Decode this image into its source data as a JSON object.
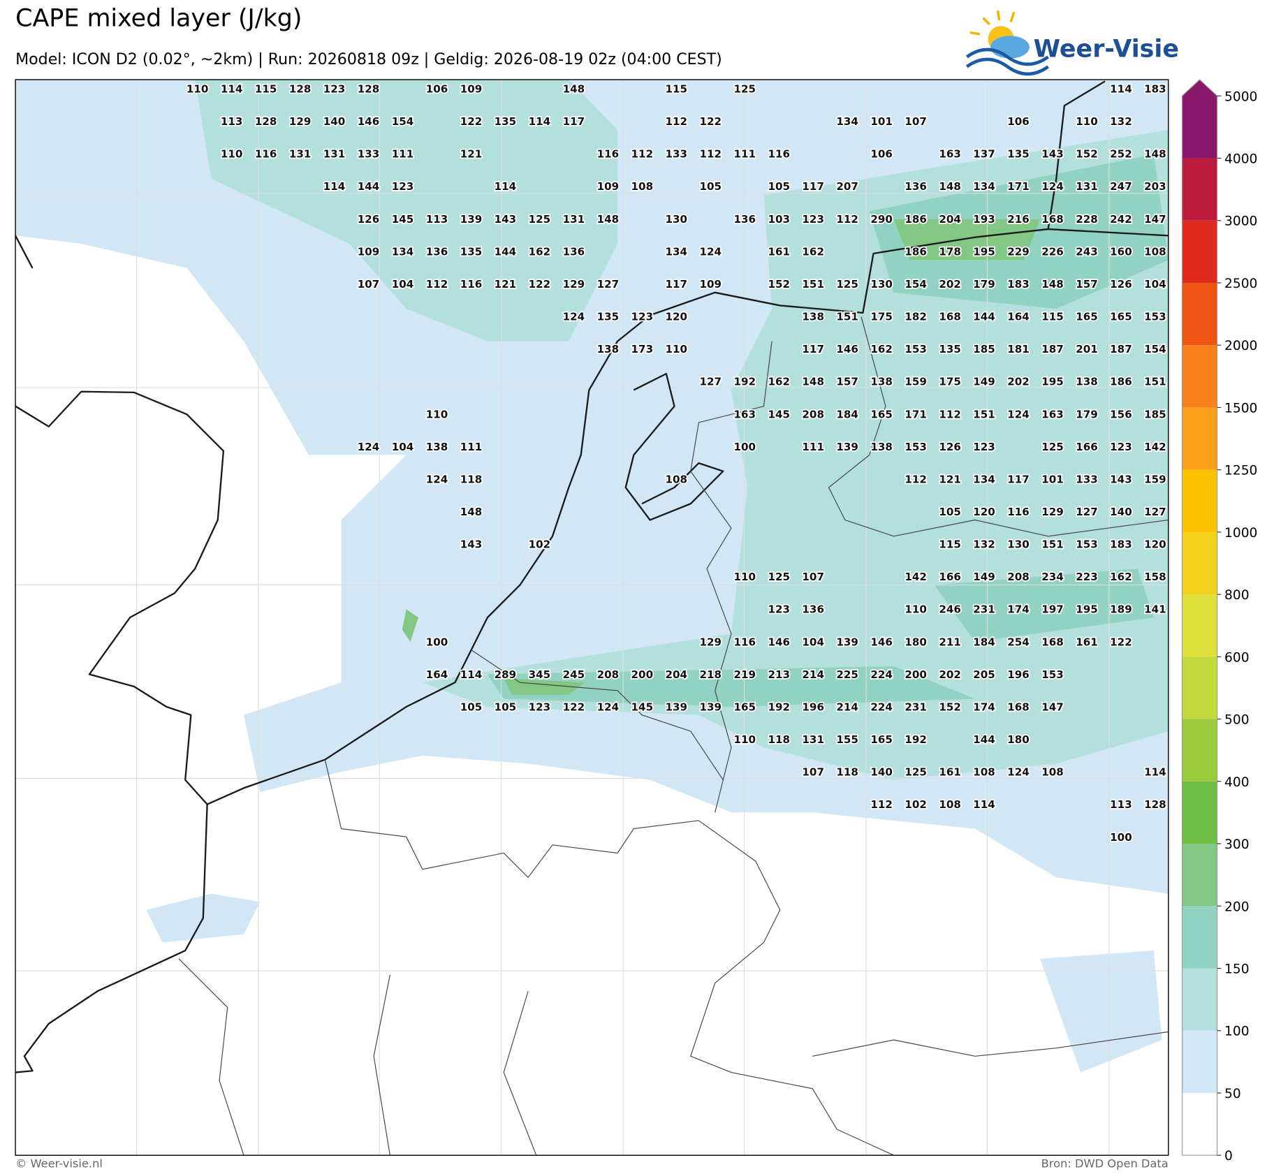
{
  "header": {
    "title": "CAPE mixed layer (J/kg)",
    "subtitle": "Model: ICON D2 (0.02°, ~2km)  |  Run: 20260818 09z  |  Geldig: 2026-08-19 02z (04:00 CEST)",
    "logo": "Weer-Visie"
  },
  "map": {
    "grid_values": [
      [
        110,
        114,
        115,
        128,
        123,
        128,
        null,
        106,
        109,
        null,
        null,
        148,
        null,
        null,
        115,
        null,
        125,
        null,
        null,
        null,
        null,
        null,
        null,
        null,
        null,
        null,
        null,
        114,
        183
      ],
      [
        null,
        113,
        128,
        129,
        140,
        146,
        154,
        null,
        122,
        135,
        114,
        117,
        null,
        null,
        112,
        122,
        null,
        null,
        null,
        134,
        101,
        107,
        null,
        null,
        106,
        null,
        110,
        132,
        null
      ],
      [
        null,
        110,
        116,
        131,
        131,
        133,
        111,
        null,
        121,
        null,
        null,
        null,
        116,
        112,
        133,
        112,
        111,
        116,
        null,
        null,
        106,
        null,
        163,
        137,
        135,
        143,
        152,
        252,
        148
      ],
      [
        null,
        null,
        null,
        null,
        114,
        144,
        123,
        null,
        null,
        114,
        null,
        null,
        109,
        108,
        null,
        105,
        null,
        105,
        117,
        207,
        null,
        136,
        148,
        134,
        171,
        124,
        131,
        247,
        203
      ],
      [
        null,
        null,
        null,
        null,
        null,
        126,
        145,
        113,
        139,
        143,
        125,
        131,
        148,
        null,
        130,
        null,
        136,
        103,
        123,
        112,
        290,
        186,
        204,
        193,
        216,
        168,
        228,
        242,
        147
      ],
      [
        null,
        null,
        null,
        null,
        null,
        109,
        134,
        136,
        135,
        144,
        162,
        136,
        null,
        null,
        134,
        124,
        null,
        161,
        162,
        null,
        null,
        186,
        178,
        195,
        229,
        226,
        243,
        160,
        108
      ],
      [
        null,
        null,
        null,
        null,
        null,
        107,
        104,
        112,
        116,
        121,
        122,
        129,
        127,
        null,
        117,
        109,
        null,
        152,
        151,
        125,
        130,
        154,
        202,
        179,
        183,
        148,
        157,
        126,
        104
      ],
      [
        null,
        null,
        null,
        null,
        null,
        null,
        null,
        null,
        null,
        null,
        null,
        124,
        135,
        123,
        120,
        null,
        null,
        null,
        138,
        151,
        175,
        182,
        168,
        144,
        164,
        115,
        165,
        165,
        153
      ],
      [
        null,
        null,
        null,
        null,
        null,
        null,
        null,
        null,
        null,
        null,
        null,
        null,
        138,
        173,
        110,
        null,
        null,
        null,
        117,
        146,
        162,
        153,
        135,
        185,
        181,
        187,
        201,
        187,
        154
      ],
      [
        null,
        null,
        null,
        null,
        null,
        null,
        null,
        null,
        null,
        null,
        null,
        null,
        null,
        null,
        null,
        127,
        192,
        162,
        148,
        157,
        138,
        159,
        175,
        149,
        202,
        195,
        138,
        186,
        151
      ],
      [
        null,
        null,
        null,
        null,
        null,
        null,
        null,
        110,
        null,
        null,
        null,
        null,
        null,
        null,
        null,
        null,
        163,
        145,
        208,
        184,
        165,
        171,
        112,
        151,
        124,
        163,
        179,
        156,
        185
      ],
      [
        null,
        null,
        null,
        null,
        null,
        124,
        104,
        138,
        111,
        null,
        null,
        null,
        null,
        null,
        null,
        null,
        100,
        null,
        111,
        139,
        138,
        153,
        126,
        123,
        null,
        125,
        166,
        123,
        142
      ],
      [
        null,
        null,
        null,
        null,
        null,
        null,
        null,
        124,
        118,
        null,
        null,
        null,
        null,
        null,
        108,
        null,
        null,
        null,
        null,
        null,
        null,
        112,
        121,
        134,
        117,
        101,
        133,
        143,
        159
      ],
      [
        null,
        null,
        null,
        null,
        null,
        null,
        null,
        null,
        148,
        null,
        null,
        null,
        null,
        null,
        null,
        null,
        null,
        null,
        null,
        null,
        null,
        null,
        105,
        120,
        116,
        129,
        127,
        140,
        127
      ],
      [
        null,
        null,
        null,
        null,
        null,
        null,
        null,
        null,
        143,
        null,
        102,
        null,
        null,
        null,
        null,
        null,
        null,
        null,
        null,
        null,
        null,
        null,
        115,
        132,
        130,
        151,
        153,
        183,
        120
      ],
      [
        null,
        null,
        null,
        null,
        null,
        null,
        null,
        null,
        null,
        null,
        null,
        null,
        null,
        null,
        null,
        null,
        110,
        125,
        107,
        null,
        null,
        142,
        166,
        149,
        208,
        234,
        223,
        162,
        158
      ],
      [
        null,
        null,
        null,
        null,
        null,
        null,
        null,
        null,
        null,
        null,
        null,
        null,
        null,
        null,
        null,
        null,
        null,
        123,
        136,
        null,
        null,
        110,
        246,
        231,
        174,
        197,
        195,
        189,
        141
      ],
      [
        null,
        null,
        null,
        null,
        null,
        null,
        null,
        100,
        null,
        null,
        null,
        null,
        null,
        null,
        null,
        129,
        116,
        146,
        104,
        139,
        146,
        180,
        211,
        184,
        254,
        168,
        161,
        122,
        null
      ],
      [
        null,
        null,
        null,
        null,
        null,
        null,
        null,
        164,
        114,
        289,
        345,
        245,
        208,
        200,
        204,
        218,
        219,
        213,
        214,
        225,
        224,
        200,
        202,
        205,
        196,
        153,
        null,
        null,
        null
      ],
      [
        null,
        null,
        null,
        null,
        null,
        null,
        null,
        null,
        105,
        105,
        123,
        122,
        124,
        145,
        139,
        139,
        165,
        192,
        196,
        214,
        224,
        231,
        152,
        174,
        168,
        147,
        null,
        null,
        null
      ],
      [
        null,
        null,
        null,
        null,
        null,
        null,
        null,
        null,
        null,
        null,
        null,
        null,
        null,
        null,
        null,
        null,
        110,
        118,
        131,
        155,
        165,
        192,
        null,
        144,
        180,
        null,
        null,
        null,
        null
      ],
      [
        null,
        null,
        null,
        null,
        null,
        null,
        null,
        null,
        null,
        null,
        null,
        null,
        null,
        null,
        null,
        null,
        null,
        null,
        107,
        118,
        140,
        125,
        161,
        108,
        124,
        108,
        null,
        null,
        114
      ],
      [
        null,
        null,
        null,
        null,
        null,
        null,
        null,
        null,
        null,
        null,
        null,
        null,
        null,
        null,
        null,
        null,
        null,
        null,
        null,
        null,
        112,
        102,
        108,
        114,
        null,
        null,
        null,
        113,
        128
      ],
      [
        null,
        null,
        null,
        null,
        null,
        null,
        null,
        null,
        null,
        null,
        null,
        null,
        null,
        null,
        null,
        null,
        null,
        null,
        null,
        null,
        null,
        null,
        null,
        null,
        null,
        null,
        null,
        100,
        null
      ]
    ]
  },
  "colorbar": {
    "levels": [
      0,
      50,
      100,
      150,
      200,
      300,
      400,
      500,
      600,
      800,
      1000,
      1250,
      1500,
      2000,
      2500,
      3000,
      4000,
      5000
    ],
    "colors": [
      "#ffffff",
      "#d2e7f6",
      "#b3e0dd",
      "#91d2c2",
      "#82c784",
      "#6fbe45",
      "#9acb3c",
      "#c2da3e",
      "#e0e03c",
      "#f2d21a",
      "#fcc200",
      "#fba01a",
      "#f7801a",
      "#ee5514",
      "#df2a1e",
      "#bd1a3c",
      "#8a186a"
    ]
  },
  "footer": {
    "left": "© Weer-visie.nl",
    "right": "Bron: DWD Open Data"
  }
}
